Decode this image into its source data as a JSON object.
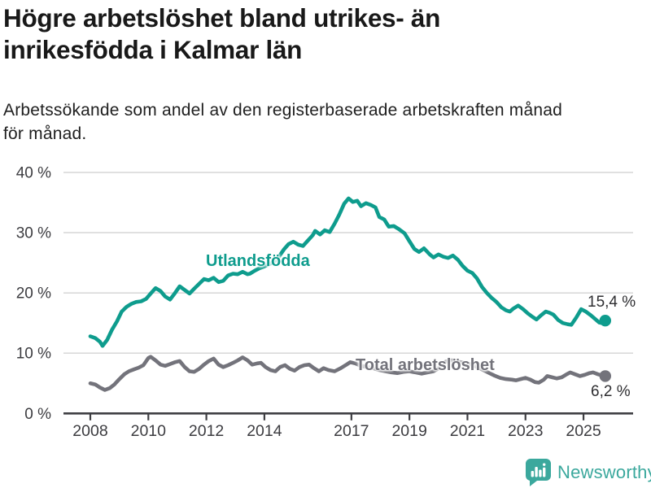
{
  "header": {
    "title_line1": "Högre arbetslöshet bland utrikes- än",
    "title_line2": "inrikesfödda i Kalmar län",
    "subtitle_line1": "Arbetssökande som andel av den registerbaserade arbetskraften månad",
    "subtitle_line2": "för månad."
  },
  "chart_data": {
    "type": "line",
    "title": "Högre arbetslöshet bland utrikes- än inrikesfödda i Kalmar län",
    "subtitle": "Arbetssökande som andel av den registerbaserade arbetskraften månad för månad.",
    "unit": "%",
    "xlim": [
      2007.1,
      2026.7
    ],
    "ylim": [
      0,
      40
    ],
    "grid": "horizontal-light",
    "legend_position": "inline-labels",
    "x_ticks": [
      2008,
      2010,
      2012,
      2014,
      2017,
      2019,
      2021,
      2023,
      2025
    ],
    "y_ticks": [
      {
        "value": 40,
        "label": "40 %"
      },
      {
        "value": 30,
        "label": "30 %"
      },
      {
        "value": 20,
        "label": "20 %"
      },
      {
        "value": 10,
        "label": "10 %"
      },
      {
        "value": 0,
        "label": "0 %"
      }
    ],
    "series": [
      {
        "id": "utlandsfodda",
        "name": "Utlandsfödda",
        "color": "#0e9c8d",
        "end_label": "15,4 %",
        "last_value": 15.4,
        "points": [
          [
            2008.0,
            12.8
          ],
          [
            2008.17,
            12.5
          ],
          [
            2008.33,
            11.9
          ],
          [
            2008.42,
            11.2
          ],
          [
            2008.58,
            12.2
          ],
          [
            2008.75,
            13.9
          ],
          [
            2008.92,
            15.3
          ],
          [
            2009.08,
            16.9
          ],
          [
            2009.25,
            17.7
          ],
          [
            2009.42,
            18.2
          ],
          [
            2009.58,
            18.5
          ],
          [
            2009.75,
            18.6
          ],
          [
            2009.92,
            19.0
          ],
          [
            2010.08,
            19.9
          ],
          [
            2010.25,
            20.8
          ],
          [
            2010.42,
            20.3
          ],
          [
            2010.58,
            19.4
          ],
          [
            2010.75,
            18.9
          ],
          [
            2010.92,
            20.0
          ],
          [
            2011.08,
            21.1
          ],
          [
            2011.25,
            20.5
          ],
          [
            2011.42,
            19.9
          ],
          [
            2011.58,
            20.7
          ],
          [
            2011.75,
            21.5
          ],
          [
            2011.92,
            22.3
          ],
          [
            2012.08,
            22.1
          ],
          [
            2012.25,
            22.5
          ],
          [
            2012.42,
            21.8
          ],
          [
            2012.58,
            22.0
          ],
          [
            2012.75,
            22.9
          ],
          [
            2012.92,
            23.2
          ],
          [
            2013.08,
            23.1
          ],
          [
            2013.25,
            23.5
          ],
          [
            2013.42,
            23.1
          ],
          [
            2013.5,
            23.2
          ],
          [
            2013.67,
            23.7
          ],
          [
            2013.83,
            24.1
          ],
          [
            2014.0,
            24.4
          ],
          [
            2014.17,
            24.8
          ],
          [
            2014.33,
            25.1
          ],
          [
            2014.5,
            26.0
          ],
          [
            2014.67,
            27.2
          ],
          [
            2014.83,
            28.1
          ],
          [
            2015.0,
            28.5
          ],
          [
            2015.17,
            28.0
          ],
          [
            2015.33,
            27.8
          ],
          [
            2015.5,
            28.7
          ],
          [
            2015.67,
            29.6
          ],
          [
            2015.75,
            30.3
          ],
          [
            2015.92,
            29.7
          ],
          [
            2016.08,
            30.4
          ],
          [
            2016.25,
            30.1
          ],
          [
            2016.42,
            31.5
          ],
          [
            2016.58,
            33.0
          ],
          [
            2016.75,
            34.8
          ],
          [
            2016.9,
            35.7
          ],
          [
            2017.05,
            35.1
          ],
          [
            2017.2,
            35.3
          ],
          [
            2017.33,
            34.4
          ],
          [
            2017.5,
            34.9
          ],
          [
            2017.67,
            34.6
          ],
          [
            2017.83,
            34.2
          ],
          [
            2017.96,
            32.6
          ],
          [
            2018.13,
            32.2
          ],
          [
            2018.29,
            31.0
          ],
          [
            2018.46,
            31.1
          ],
          [
            2018.63,
            30.6
          ],
          [
            2018.83,
            29.9
          ],
          [
            2019.0,
            28.6
          ],
          [
            2019.17,
            27.3
          ],
          [
            2019.33,
            26.8
          ],
          [
            2019.5,
            27.4
          ],
          [
            2019.7,
            26.4
          ],
          [
            2019.83,
            25.9
          ],
          [
            2020.0,
            26.4
          ],
          [
            2020.17,
            26.0
          ],
          [
            2020.33,
            25.8
          ],
          [
            2020.5,
            26.2
          ],
          [
            2020.67,
            25.5
          ],
          [
            2020.83,
            24.5
          ],
          [
            2021.0,
            23.7
          ],
          [
            2021.17,
            23.3
          ],
          [
            2021.33,
            22.4
          ],
          [
            2021.5,
            21.0
          ],
          [
            2021.67,
            20.0
          ],
          [
            2021.83,
            19.2
          ],
          [
            2022.0,
            18.5
          ],
          [
            2022.17,
            17.6
          ],
          [
            2022.33,
            17.1
          ],
          [
            2022.46,
            16.9
          ],
          [
            2022.58,
            17.4
          ],
          [
            2022.75,
            17.9
          ],
          [
            2022.92,
            17.3
          ],
          [
            2023.08,
            16.6
          ],
          [
            2023.25,
            16.0
          ],
          [
            2023.38,
            15.6
          ],
          [
            2023.54,
            16.3
          ],
          [
            2023.7,
            16.9
          ],
          [
            2023.83,
            16.7
          ],
          [
            2023.96,
            16.4
          ],
          [
            2024.13,
            15.5
          ],
          [
            2024.29,
            15.0
          ],
          [
            2024.46,
            14.8
          ],
          [
            2024.58,
            14.7
          ],
          [
            2024.75,
            15.9
          ],
          [
            2024.92,
            17.3
          ],
          [
            2025.08,
            16.9
          ],
          [
            2025.25,
            16.3
          ],
          [
            2025.42,
            15.6
          ],
          [
            2025.54,
            15.1
          ],
          [
            2025.63,
            15.0
          ],
          [
            2025.75,
            15.4
          ]
        ]
      },
      {
        "id": "total",
        "name": "Total arbetslöshet",
        "color": "#73737b",
        "end_label": "6,2 %",
        "last_value": 6.2,
        "points": [
          [
            2008.0,
            5.0
          ],
          [
            2008.17,
            4.8
          ],
          [
            2008.33,
            4.3
          ],
          [
            2008.5,
            3.9
          ],
          [
            2008.67,
            4.2
          ],
          [
            2008.83,
            4.8
          ],
          [
            2009.0,
            5.7
          ],
          [
            2009.17,
            6.5
          ],
          [
            2009.33,
            7.0
          ],
          [
            2009.5,
            7.3
          ],
          [
            2009.67,
            7.6
          ],
          [
            2009.83,
            8.0
          ],
          [
            2010.0,
            9.2
          ],
          [
            2010.08,
            9.4
          ],
          [
            2010.25,
            8.8
          ],
          [
            2010.42,
            8.1
          ],
          [
            2010.58,
            7.9
          ],
          [
            2010.75,
            8.2
          ],
          [
            2010.92,
            8.5
          ],
          [
            2011.08,
            8.7
          ],
          [
            2011.25,
            7.7
          ],
          [
            2011.42,
            7.0
          ],
          [
            2011.58,
            6.9
          ],
          [
            2011.75,
            7.4
          ],
          [
            2011.92,
            8.1
          ],
          [
            2012.08,
            8.7
          ],
          [
            2012.25,
            9.1
          ],
          [
            2012.42,
            8.1
          ],
          [
            2012.58,
            7.7
          ],
          [
            2012.75,
            8.0
          ],
          [
            2012.92,
            8.4
          ],
          [
            2013.08,
            8.8
          ],
          [
            2013.25,
            9.3
          ],
          [
            2013.42,
            8.8
          ],
          [
            2013.58,
            8.1
          ],
          [
            2013.75,
            8.3
          ],
          [
            2013.88,
            8.4
          ],
          [
            2014.04,
            7.7
          ],
          [
            2014.21,
            7.2
          ],
          [
            2014.38,
            7.0
          ],
          [
            2014.54,
            7.7
          ],
          [
            2014.71,
            8.0
          ],
          [
            2014.88,
            7.4
          ],
          [
            2015.04,
            7.1
          ],
          [
            2015.21,
            7.7
          ],
          [
            2015.38,
            8.0
          ],
          [
            2015.54,
            8.1
          ],
          [
            2015.71,
            7.5
          ],
          [
            2015.88,
            7.0
          ],
          [
            2016.04,
            7.5
          ],
          [
            2016.21,
            7.2
          ],
          [
            2016.42,
            7.0
          ],
          [
            2016.63,
            7.5
          ],
          [
            2016.83,
            8.1
          ],
          [
            2016.96,
            8.5
          ],
          [
            2017.13,
            8.3
          ],
          [
            2017.33,
            7.9
          ],
          [
            2017.54,
            7.7
          ],
          [
            2017.75,
            7.5
          ],
          [
            2017.96,
            7.2
          ],
          [
            2018.17,
            7.0
          ],
          [
            2018.38,
            6.8
          ],
          [
            2018.58,
            6.7
          ],
          [
            2018.79,
            6.9
          ],
          [
            2019.0,
            7.0
          ],
          [
            2019.21,
            6.8
          ],
          [
            2019.42,
            6.6
          ],
          [
            2019.63,
            6.8
          ],
          [
            2019.83,
            7.0
          ],
          [
            2020.04,
            7.6
          ],
          [
            2020.25,
            8.6
          ],
          [
            2020.46,
            8.8
          ],
          [
            2020.67,
            8.6
          ],
          [
            2020.88,
            8.4
          ],
          [
            2021.08,
            8.2
          ],
          [
            2021.29,
            7.8
          ],
          [
            2021.5,
            7.3
          ],
          [
            2021.71,
            6.8
          ],
          [
            2021.92,
            6.3
          ],
          [
            2022.13,
            5.9
          ],
          [
            2022.33,
            5.7
          ],
          [
            2022.54,
            5.6
          ],
          [
            2022.67,
            5.5
          ],
          [
            2022.83,
            5.7
          ],
          [
            2023.0,
            5.9
          ],
          [
            2023.17,
            5.6
          ],
          [
            2023.33,
            5.2
          ],
          [
            2023.46,
            5.1
          ],
          [
            2023.63,
            5.6
          ],
          [
            2023.75,
            6.2
          ],
          [
            2023.92,
            6.0
          ],
          [
            2024.08,
            5.8
          ],
          [
            2024.25,
            6.0
          ],
          [
            2024.42,
            6.5
          ],
          [
            2024.54,
            6.8
          ],
          [
            2024.71,
            6.5
          ],
          [
            2024.88,
            6.2
          ],
          [
            2025.04,
            6.4
          ],
          [
            2025.21,
            6.7
          ],
          [
            2025.33,
            6.8
          ],
          [
            2025.5,
            6.5
          ],
          [
            2025.63,
            6.3
          ],
          [
            2025.75,
            6.2
          ]
        ]
      }
    ]
  },
  "footer": {
    "brand": "Newsworthy",
    "brand_color": "#3ba89d",
    "logo_icon": "bar-chart-speech-bubble-icon"
  }
}
